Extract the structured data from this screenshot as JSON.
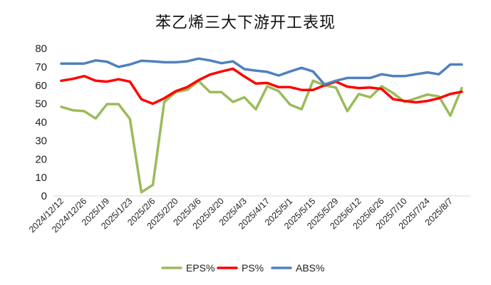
{
  "chart_data": {
    "type": "line",
    "title": "苯乙烯三大下游开工表现",
    "xlabel": "",
    "ylabel": "",
    "ylim": [
      0,
      80
    ],
    "y_ticks": [
      0,
      10,
      20,
      30,
      40,
      50,
      60,
      70,
      80
    ],
    "grid": false,
    "legend_position": "bottom",
    "x_tick_labels": [
      "2024/12/12",
      "2024/12/26",
      "2025/1/9",
      "2025/1/23",
      "2025/2/6",
      "2025/2/20",
      "2025/3/6",
      "2025/3/20",
      "2025/4/3",
      "2025/4/17",
      "2025/5/1",
      "2025/5/15",
      "2025/5/29",
      "2025/6/12",
      "2025/6/26",
      "2025/7/10",
      "2025/7/24",
      "2025/8/7"
    ],
    "x": [
      "2024/12/12",
      "2024/12/19",
      "2024/12/26",
      "2025/1/2",
      "2025/1/9",
      "2025/1/16",
      "2025/1/23",
      "2025/1/30",
      "2025/2/6",
      "2025/2/13",
      "2025/2/20",
      "2025/2/27",
      "2025/3/6",
      "2025/3/13",
      "2025/3/20",
      "2025/3/27",
      "2025/4/3",
      "2025/4/10",
      "2025/4/17",
      "2025/4/24",
      "2025/5/1",
      "2025/5/8",
      "2025/5/15",
      "2025/5/22",
      "2025/5/29",
      "2025/6/5",
      "2025/6/12",
      "2025/6/19",
      "2025/6/26",
      "2025/7/3",
      "2025/7/10",
      "2025/7/17",
      "2025/7/24",
      "2025/7/31",
      "2025/8/7",
      "2025/8/14"
    ],
    "series": [
      {
        "name": "EPS%",
        "color": "#9BBB59",
        "values": [
          48.3,
          46.5,
          46.0,
          42.0,
          49.8,
          49.8,
          41.8,
          2.0,
          6.0,
          51.0,
          56.3,
          57.5,
          62.3,
          56.3,
          56.3,
          51.0,
          53.5,
          47.0,
          59.5,
          56.8,
          49.5,
          47.0,
          62.5,
          60.0,
          58.8,
          46.0,
          55.3,
          53.5,
          59.5,
          55.8,
          51.0,
          53.0,
          55.0,
          54.0,
          43.5,
          58.5
        ]
      },
      {
        "name": "PS%",
        "color": "#FF0000",
        "values": [
          62.5,
          63.5,
          65.0,
          62.5,
          62.0,
          63.3,
          62.0,
          52.5,
          50.0,
          53.0,
          56.8,
          59.0,
          62.8,
          65.8,
          67.5,
          69.0,
          64.8,
          61.0,
          61.3,
          59.0,
          59.0,
          57.5,
          57.5,
          60.0,
          62.0,
          59.3,
          58.5,
          58.8,
          58.0,
          52.5,
          51.5,
          50.8,
          51.5,
          53.0,
          55.3,
          56.5
        ]
      },
      {
        "name": "ABS%",
        "color": "#4F81BD",
        "values": [
          71.8,
          71.8,
          71.8,
          73.5,
          72.8,
          70.0,
          71.3,
          73.3,
          73.0,
          72.5,
          72.5,
          73.0,
          74.5,
          73.5,
          72.0,
          73.0,
          68.8,
          68.0,
          67.3,
          65.3,
          67.5,
          69.5,
          67.5,
          60.5,
          62.5,
          64.0,
          64.0,
          64.0,
          66.0,
          65.0,
          65.0,
          66.0,
          67.0,
          66.0,
          71.3,
          71.3
        ]
      }
    ]
  }
}
